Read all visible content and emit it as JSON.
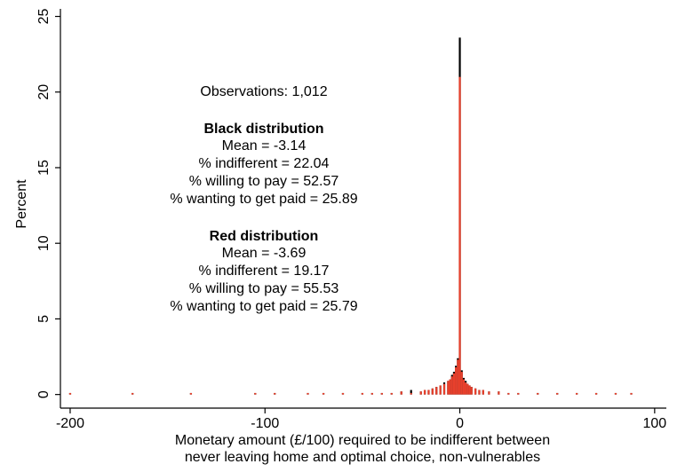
{
  "chart_data": {
    "type": "bar",
    "xlabel": [
      "Monetary amount (£/100) required to be indifferent between",
      "never leaving home and optimal choice, non-vulnerables"
    ],
    "ylabel": "Percent",
    "xlim": [
      -205,
      106
    ],
    "ylim": [
      -0.9,
      25.5
    ],
    "xticks": [
      -200,
      -100,
      0,
      100
    ],
    "yticks": [
      0,
      5,
      10,
      15,
      20,
      25
    ],
    "x": [
      -200,
      -168,
      -138,
      -105,
      -95,
      -78,
      -70,
      -60,
      -50,
      -45,
      -40,
      -35,
      -30,
      -25,
      -20,
      -18,
      -16,
      -14,
      -12,
      -10,
      -8,
      -6,
      -5,
      -4,
      -3,
      -2,
      -1,
      0,
      1,
      2,
      3,
      4,
      5,
      6,
      8,
      10,
      12,
      15,
      20,
      25,
      30,
      40,
      50,
      60,
      70,
      80,
      88
    ],
    "series": [
      {
        "name": "Black distribution",
        "color": "#000000",
        "values": [
          0.1,
          0.1,
          0.1,
          0.1,
          0.1,
          0.1,
          0.1,
          0.1,
          0.1,
          0.1,
          0.1,
          0.1,
          0.2,
          0.3,
          0.2,
          0.3,
          0.3,
          0.4,
          0.5,
          0.6,
          0.8,
          0.9,
          1.0,
          1.3,
          1.5,
          1.9,
          2.4,
          23.6,
          1.6,
          1.1,
          0.9,
          0.7,
          0.6,
          0.5,
          0.4,
          0.3,
          0.3,
          0.2,
          0.2,
          0.1,
          0.1,
          0.1,
          0.1,
          0.1,
          0.1,
          0.1,
          0.1
        ]
      },
      {
        "name": "Red distribution",
        "color": "#e8402c",
        "values": [
          0.1,
          0.1,
          0.1,
          0.1,
          0.1,
          0.1,
          0.1,
          0.1,
          0.1,
          0.1,
          0.1,
          0.1,
          0.2,
          0.1,
          0.2,
          0.3,
          0.3,
          0.4,
          0.5,
          0.6,
          0.7,
          0.9,
          1.0,
          1.2,
          1.4,
          1.8,
          2.3,
          21.0,
          1.5,
          1.0,
          0.8,
          0.7,
          0.6,
          0.5,
          0.4,
          0.3,
          0.3,
          0.2,
          0.2,
          0.1,
          0.1,
          0.1,
          0.1,
          0.1,
          0.1,
          0.1,
          0.1
        ]
      }
    ],
    "annotation": {
      "observations": "Observations: 1,012",
      "groups": [
        {
          "title": "Black distribution",
          "lines": [
            "Mean = -3.14",
            "% indifferent = 22.04",
            "% willing to pay = 52.57",
            "% wanting to get paid = 25.89"
          ]
        },
        {
          "title": "Red distribution",
          "lines": [
            "Mean = -3.69",
            "% indifferent = 19.17",
            "% willing to pay = 55.53",
            "% wanting to get paid = 25.79"
          ]
        }
      ]
    }
  }
}
